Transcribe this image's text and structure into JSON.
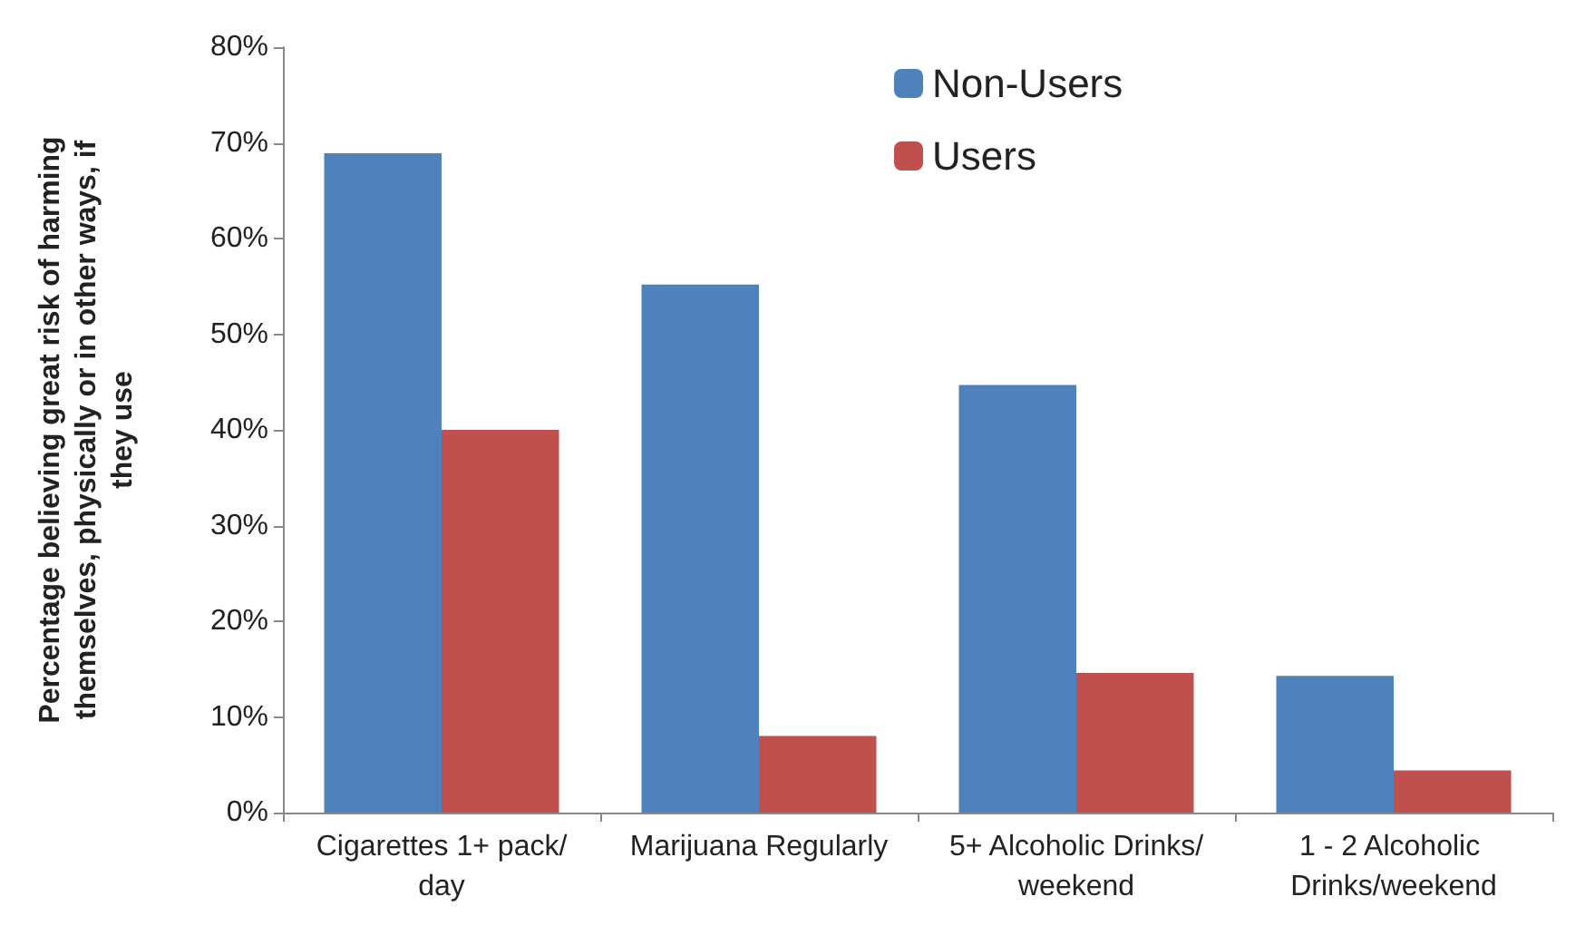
{
  "chart_data": {
    "type": "bar",
    "ylabel": "Percentage believing great risk of harming themselves, physically or in other ways, if they use",
    "categories": [
      "Cigarettes 1+ pack/day",
      "Marijuana Regularly",
      "5+ Alcoholic Drinks/weekend",
      "1 - 2 Alcoholic Drinks/weekend"
    ],
    "series": [
      {
        "name": "Non-Users",
        "color": "#4f81bd",
        "values": [
          68.9,
          55.2,
          44.7,
          14.3
        ]
      },
      {
        "name": "Users",
        "color": "#c0504d",
        "values": [
          40,
          8,
          14.6,
          4.4
        ]
      }
    ],
    "ylim": [
      0,
      80
    ],
    "yticks": [
      {
        "value": 0,
        "label": "0%"
      },
      {
        "value": 10,
        "label": "10%"
      },
      {
        "value": 20,
        "label": "20%"
      },
      {
        "value": 30,
        "label": "30%"
      },
      {
        "value": 40,
        "label": "40%"
      },
      {
        "value": 50,
        "label": "50%"
      },
      {
        "value": 60,
        "label": "60%"
      },
      {
        "value": 70,
        "label": "70%"
      },
      {
        "value": 80,
        "label": "80%"
      }
    ],
    "grid": false,
    "legend": "top"
  }
}
